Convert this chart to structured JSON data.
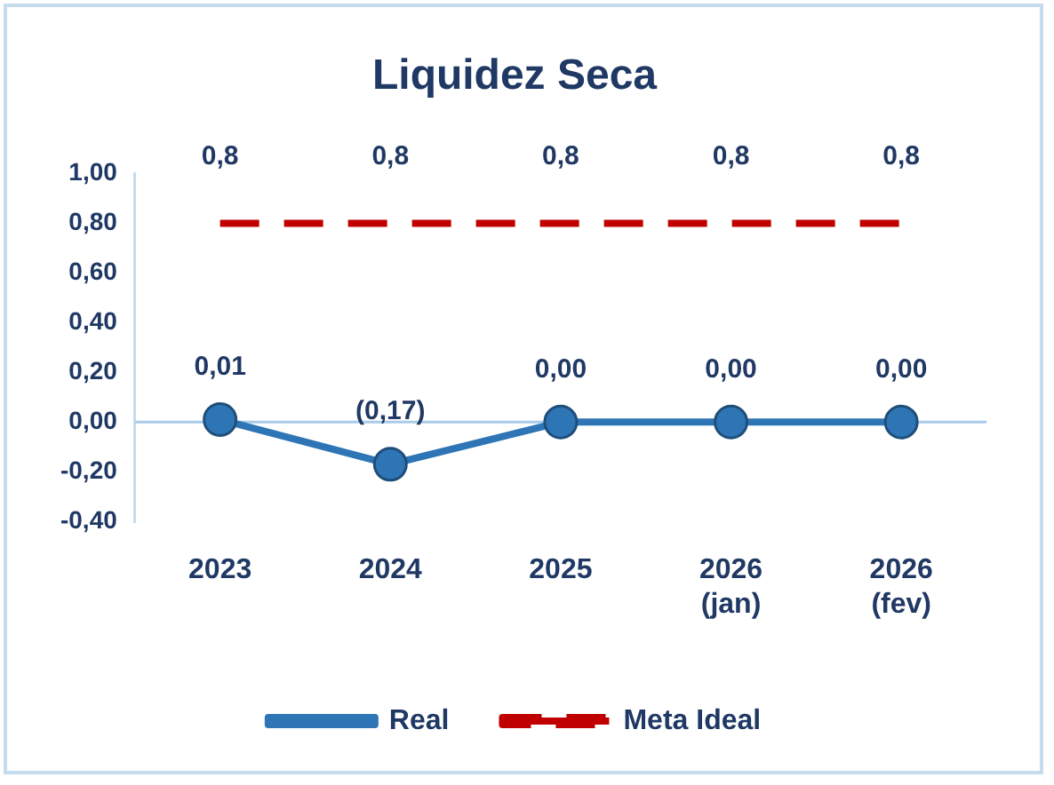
{
  "chart_data": {
    "type": "line",
    "title": "Liquidez Seca",
    "categories": [
      "2023",
      "2024",
      "2025",
      "2026\n(jan)",
      "2026\n(fev)"
    ],
    "series": [
      {
        "name": "Real",
        "color": "#2e75b6",
        "values": [
          0.01,
          -0.17,
          0.0,
          0.0,
          0.0
        ],
        "value_labels": [
          "0,01",
          "(0,17)",
          "0,00",
          "0,00",
          "0,00"
        ],
        "marker": "circle",
        "line_style": "solid"
      },
      {
        "name": "Meta Ideal",
        "color": "#c00000",
        "values": [
          0.8,
          0.8,
          0.8,
          0.8,
          0.8
        ],
        "value_labels": [
          "0,8",
          "0,8",
          "0,8",
          "0,8",
          "0,8"
        ],
        "marker": "none",
        "line_style": "dashed"
      }
    ],
    "ylim": [
      -0.4,
      1.0
    ],
    "yticks": [
      {
        "value": -0.4,
        "label": "-0,40"
      },
      {
        "value": -0.2,
        "label": "-0,20"
      },
      {
        "value": 0,
        "label": "0,00"
      },
      {
        "value": 0.2,
        "label": "0,20"
      },
      {
        "value": 0.4,
        "label": "0,40"
      },
      {
        "value": 0.6,
        "label": "0,60"
      },
      {
        "value": 0.8,
        "label": "0,80"
      },
      {
        "value": 1.0,
        "label": "1,00"
      }
    ],
    "ref_lines": [
      {
        "axis": "y",
        "value": 0,
        "color": "#a9cbe8"
      }
    ],
    "legend": "bottom",
    "grid": false
  }
}
